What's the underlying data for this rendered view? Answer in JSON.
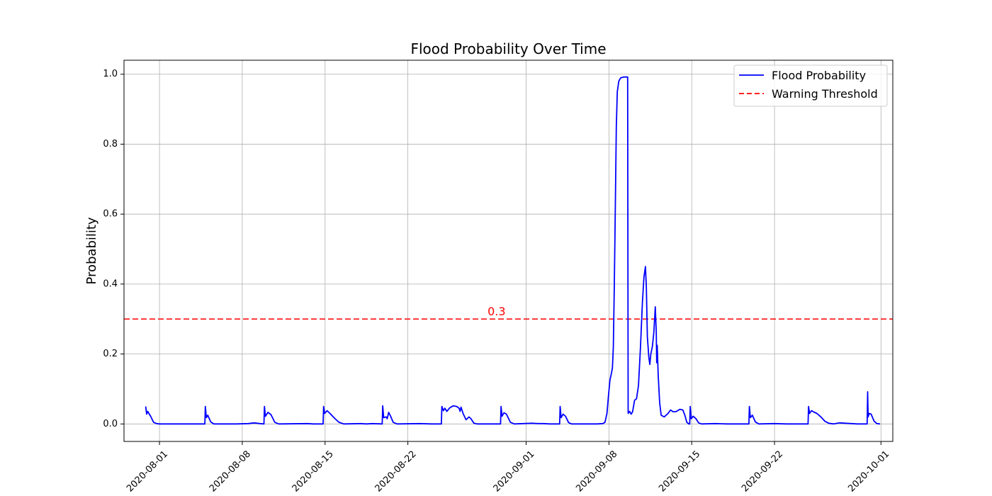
{
  "chart_data": {
    "type": "line",
    "title": "Flood Probability Over Time",
    "xlabel": "",
    "ylabel": "Probability",
    "xlim": [
      "2020-07-29",
      "2020-10-02"
    ],
    "ylim": [
      -0.05,
      1.04
    ],
    "x_ticks": [
      "2020-08-01",
      "2020-08-08",
      "2020-08-15",
      "2020-08-22",
      "2020-09-01",
      "2020-09-08",
      "2020-09-15",
      "2020-09-22",
      "2020-10-01"
    ],
    "y_ticks": [
      "0.0",
      "0.2",
      "0.4",
      "0.6",
      "0.8",
      "1.0"
    ],
    "grid": true,
    "legend": "top-right",
    "series": [
      {
        "name": "Flood Probability",
        "color": "#0000ff",
        "style": "solid",
        "points": [
          [
            "2020-07-30T20:00",
            0.05
          ],
          [
            "2020-07-30T22:00",
            0.028
          ],
          [
            "2020-07-31T00:00",
            0.036
          ],
          [
            "2020-07-31T06:00",
            0.022
          ],
          [
            "2020-07-31T12:00",
            0.005
          ],
          [
            "2020-07-31T18:00",
            0.001
          ],
          [
            "2020-08-01T00:00",
            0.0
          ],
          [
            "2020-08-04T20:00",
            0.0
          ],
          [
            "2020-08-04T21:00",
            0.05
          ],
          [
            "2020-08-04T23:00",
            0.018
          ],
          [
            "2020-08-05T02:00",
            0.025
          ],
          [
            "2020-08-05T08:00",
            0.006
          ],
          [
            "2020-08-05T14:00",
            0.0
          ],
          [
            "2020-08-07T12:00",
            0.0
          ],
          [
            "2020-08-08T12:00",
            0.001
          ],
          [
            "2020-08-09T00:00",
            0.003
          ],
          [
            "2020-08-09T12:00",
            0.001
          ],
          [
            "2020-08-09T20:00",
            0.0
          ],
          [
            "2020-08-09T21:00",
            0.05
          ],
          [
            "2020-08-09T23:00",
            0.022
          ],
          [
            "2020-08-10T04:00",
            0.033
          ],
          [
            "2020-08-10T10:00",
            0.027
          ],
          [
            "2020-08-10T18:00",
            0.005
          ],
          [
            "2020-08-11T02:00",
            0.0
          ],
          [
            "2020-08-13T12:00",
            0.001
          ],
          [
            "2020-08-14T00:00",
            0.0
          ],
          [
            "2020-08-14T20:00",
            0.0
          ],
          [
            "2020-08-14T21:00",
            0.05
          ],
          [
            "2020-08-14T23:00",
            0.03
          ],
          [
            "2020-08-15T04:00",
            0.038
          ],
          [
            "2020-08-15T10:00",
            0.03
          ],
          [
            "2020-08-15T18:00",
            0.018
          ],
          [
            "2020-08-16T04:00",
            0.005
          ],
          [
            "2020-08-16T14:00",
            0.0
          ],
          [
            "2020-08-18T00:00",
            0.001
          ],
          [
            "2020-08-18T12:00",
            0.0
          ],
          [
            "2020-08-19T00:00",
            0.001
          ],
          [
            "2020-08-19T20:00",
            0.0
          ],
          [
            "2020-08-19T21:00",
            0.052
          ],
          [
            "2020-08-19T23:00",
            0.018
          ],
          [
            "2020-08-20T04:00",
            0.02
          ],
          [
            "2020-08-20T06:00",
            0.015
          ],
          [
            "2020-08-20T09:00",
            0.033
          ],
          [
            "2020-08-20T13:00",
            0.022
          ],
          [
            "2020-08-20T18:00",
            0.005
          ],
          [
            "2020-08-21T02:00",
            0.0
          ],
          [
            "2020-08-23T00:00",
            0.001
          ],
          [
            "2020-08-24T00:00",
            0.0
          ],
          [
            "2020-08-24T20:00",
            0.0
          ],
          [
            "2020-08-24T21:00",
            0.05
          ],
          [
            "2020-08-25T00:00",
            0.038
          ],
          [
            "2020-08-25T03:00",
            0.045
          ],
          [
            "2020-08-25T07:00",
            0.036
          ],
          [
            "2020-08-25T13:00",
            0.046
          ],
          [
            "2020-08-25T20:00",
            0.052
          ],
          [
            "2020-08-26T03:00",
            0.05
          ],
          [
            "2020-08-26T08:00",
            0.045
          ],
          [
            "2020-08-26T10:00",
            0.036
          ],
          [
            "2020-08-26T12:00",
            0.048
          ],
          [
            "2020-08-26T16:00",
            0.03
          ],
          [
            "2020-08-26T22:00",
            0.012
          ],
          [
            "2020-08-27T04:00",
            0.02
          ],
          [
            "2020-08-27T08:00",
            0.015
          ],
          [
            "2020-08-27T14:00",
            0.002
          ],
          [
            "2020-08-27T20:00",
            0.0
          ],
          [
            "2020-08-29T20:00",
            0.0
          ],
          [
            "2020-08-29T21:00",
            0.05
          ],
          [
            "2020-08-29T23:00",
            0.022
          ],
          [
            "2020-08-30T03:00",
            0.032
          ],
          [
            "2020-08-30T08:00",
            0.028
          ],
          [
            "2020-08-30T16:00",
            0.005
          ],
          [
            "2020-08-31T00:00",
            0.0
          ],
          [
            "2020-09-01T12:00",
            0.002
          ],
          [
            "2020-09-02T00:00",
            0.001
          ],
          [
            "2020-09-02T12:00",
            0.001
          ],
          [
            "2020-09-03T00:00",
            0.0
          ],
          [
            "2020-09-03T20:00",
            0.0
          ],
          [
            "2020-09-03T21:00",
            0.05
          ],
          [
            "2020-09-03T23:00",
            0.018
          ],
          [
            "2020-09-04T03:00",
            0.028
          ],
          [
            "2020-09-04T08:00",
            0.022
          ],
          [
            "2020-09-04T14:00",
            0.004
          ],
          [
            "2020-09-04T20:00",
            0.0
          ],
          [
            "2020-09-07T00:00",
            0.0
          ],
          [
            "2020-09-07T12:00",
            0.001
          ],
          [
            "2020-09-07T16:00",
            0.005
          ],
          [
            "2020-09-07T20:00",
            0.03
          ],
          [
            "2020-09-07T23:00",
            0.08
          ],
          [
            "2020-09-08T02:00",
            0.125
          ],
          [
            "2020-09-08T05:00",
            0.145
          ],
          [
            "2020-09-08T07:00",
            0.16
          ],
          [
            "2020-09-08T09:00",
            0.22
          ],
          [
            "2020-09-08T11:00",
            0.4
          ],
          [
            "2020-09-08T13:00",
            0.62
          ],
          [
            "2020-09-08T15:00",
            0.85
          ],
          [
            "2020-09-08T17:00",
            0.95
          ],
          [
            "2020-09-08T20:00",
            0.98
          ],
          [
            "2020-09-09T00:00",
            0.99
          ],
          [
            "2020-09-09T06:00",
            0.992
          ],
          [
            "2020-09-09T14:00",
            0.992
          ],
          [
            "2020-09-09T15:00",
            0.03
          ],
          [
            "2020-09-09T18:00",
            0.036
          ],
          [
            "2020-09-09T21:00",
            0.028
          ],
          [
            "2020-09-10T00:00",
            0.035
          ],
          [
            "2020-09-10T04:00",
            0.068
          ],
          [
            "2020-09-10T08:00",
            0.072
          ],
          [
            "2020-09-10T12:00",
            0.11
          ],
          [
            "2020-09-10T16:00",
            0.22
          ],
          [
            "2020-09-10T20:00",
            0.35
          ],
          [
            "2020-09-10T23:00",
            0.42
          ],
          [
            "2020-09-11T02:00",
            0.45
          ],
          [
            "2020-09-11T04:00",
            0.39
          ],
          [
            "2020-09-11T06:00",
            0.25
          ],
          [
            "2020-09-11T09:00",
            0.19
          ],
          [
            "2020-09-11T11:00",
            0.17
          ],
          [
            "2020-09-11T13:00",
            0.2
          ],
          [
            "2020-09-11T16:00",
            0.22
          ],
          [
            "2020-09-11T19:00",
            0.26
          ],
          [
            "2020-09-11T22:00",
            0.335
          ],
          [
            "2020-09-12T00:00",
            0.26
          ],
          [
            "2020-09-12T01:00",
            0.175
          ],
          [
            "2020-09-12T02:00",
            0.225
          ],
          [
            "2020-09-12T04:00",
            0.14
          ],
          [
            "2020-09-12T07:00",
            0.06
          ],
          [
            "2020-09-12T10:00",
            0.025
          ],
          [
            "2020-09-12T16:00",
            0.02
          ],
          [
            "2020-09-13T00:00",
            0.03
          ],
          [
            "2020-09-13T05:00",
            0.04
          ],
          [
            "2020-09-13T10:00",
            0.035
          ],
          [
            "2020-09-13T16:00",
            0.035
          ],
          [
            "2020-09-14T00:00",
            0.042
          ],
          [
            "2020-09-14T06:00",
            0.04
          ],
          [
            "2020-09-14T10:00",
            0.025
          ],
          [
            "2020-09-14T14:00",
            0.005
          ],
          [
            "2020-09-14T18:00",
            0.0
          ],
          [
            "2020-09-14T20:00",
            0.0
          ],
          [
            "2020-09-14T21:00",
            0.05
          ],
          [
            "2020-09-14T23:00",
            0.015
          ],
          [
            "2020-09-15T03:00",
            0.022
          ],
          [
            "2020-09-15T08:00",
            0.016
          ],
          [
            "2020-09-15T14:00",
            0.003
          ],
          [
            "2020-09-15T20:00",
            0.0
          ],
          [
            "2020-09-17T00:00",
            0.001
          ],
          [
            "2020-09-18T00:00",
            0.0
          ],
          [
            "2020-09-19T20:00",
            0.0
          ],
          [
            "2020-09-19T21:00",
            0.05
          ],
          [
            "2020-09-19T23:00",
            0.018
          ],
          [
            "2020-09-20T03:00",
            0.025
          ],
          [
            "2020-09-20T09:00",
            0.006
          ],
          [
            "2020-09-20T16:00",
            0.0
          ],
          [
            "2020-09-22T00:00",
            0.001
          ],
          [
            "2020-09-23T00:00",
            0.0
          ],
          [
            "2020-09-24T20:00",
            0.0
          ],
          [
            "2020-09-24T21:00",
            0.05
          ],
          [
            "2020-09-24T23:00",
            0.03
          ],
          [
            "2020-09-25T03:00",
            0.038
          ],
          [
            "2020-09-25T08:00",
            0.034
          ],
          [
            "2020-09-25T14:00",
            0.03
          ],
          [
            "2020-09-25T22:00",
            0.02
          ],
          [
            "2020-09-26T06:00",
            0.008
          ],
          [
            "2020-09-26T14:00",
            0.002
          ],
          [
            "2020-09-27T00:00",
            0.0
          ],
          [
            "2020-09-27T12:00",
            0.003
          ],
          [
            "2020-09-28T00:00",
            0.002
          ],
          [
            "2020-09-28T12:00",
            0.001
          ],
          [
            "2020-09-29T00:00",
            0.0
          ],
          [
            "2020-09-29T20:00",
            0.0
          ],
          [
            "2020-09-29T21:00",
            0.092
          ],
          [
            "2020-09-29T22:00",
            0.02
          ],
          [
            "2020-09-30T00:00",
            0.03
          ],
          [
            "2020-09-30T04:00",
            0.028
          ],
          [
            "2020-09-30T10:00",
            0.008
          ],
          [
            "2020-09-30T16:00",
            0.001
          ],
          [
            "2020-09-30T22:00",
            0.0
          ]
        ]
      },
      {
        "name": "Warning Threshold",
        "color": "#ff0000",
        "style": "dashed",
        "y": 0.3
      }
    ],
    "annotations": [
      {
        "text": "0.3",
        "x": "2020-08-29T12:00",
        "y": 0.3,
        "color": "#ff0000"
      }
    ]
  }
}
